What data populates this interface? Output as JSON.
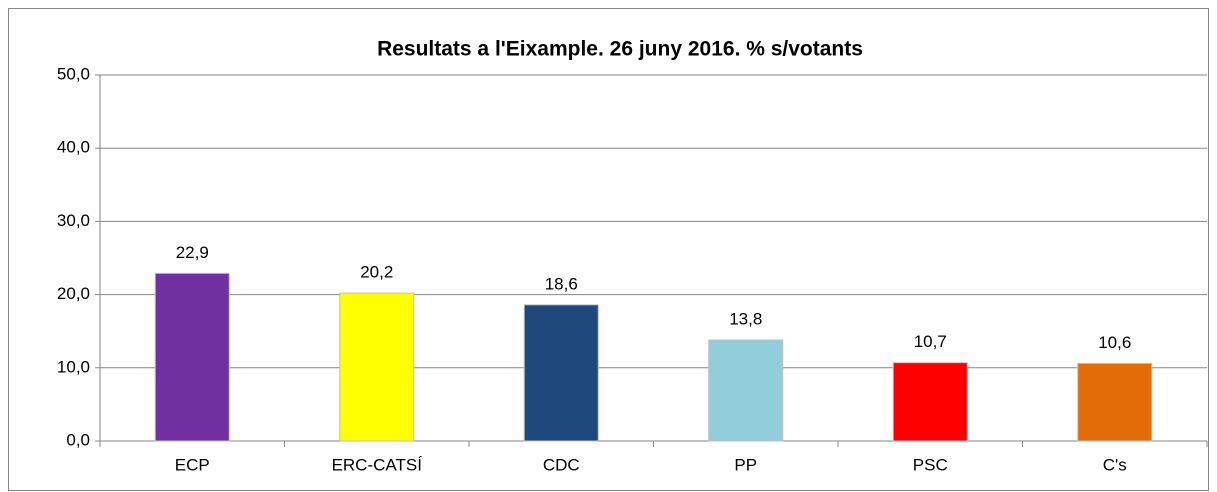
{
  "chart_data": {
    "type": "bar",
    "title": "Resultats a l'Eixample. 26 juny 2016. % s/votants",
    "categories": [
      "ECP",
      "ERC-CATSÍ",
      "CDC",
      "PP",
      "PSC",
      "C's"
    ],
    "values": [
      22.9,
      20.2,
      18.6,
      13.8,
      10.7,
      10.6
    ],
    "value_labels": [
      "22,9",
      "20,2",
      "18,6",
      "13,8",
      "10,7",
      "10,6"
    ],
    "colors": [
      "#7030a0",
      "#ffff00",
      "#1f497d",
      "#92cddc",
      "#ff0000",
      "#e36c09"
    ],
    "ylim": [
      0,
      50
    ],
    "yticks": [
      {
        "value": 0,
        "label": "0,0"
      },
      {
        "value": 10,
        "label": "10,0"
      },
      {
        "value": 20,
        "label": "20,0"
      },
      {
        "value": 30,
        "label": "30,0"
      },
      {
        "value": 40,
        "label": "40,0"
      },
      {
        "value": 50,
        "label": "50,0"
      }
    ],
    "grid": true
  }
}
